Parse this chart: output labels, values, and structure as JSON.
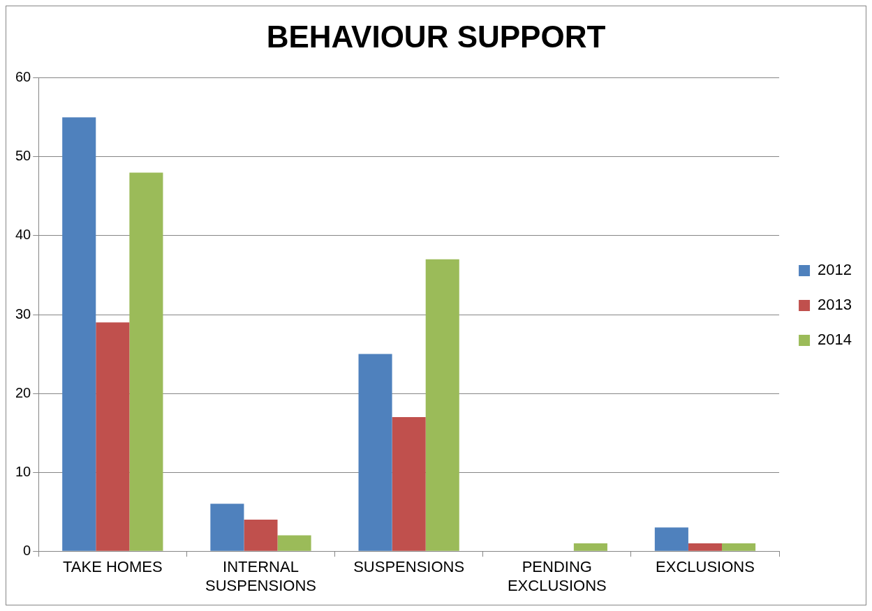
{
  "chart_data": {
    "type": "bar",
    "title": "BEHAVIOUR SUPPORT",
    "categories": [
      "TAKE HOMES",
      "INTERNAL SUSPENSIONS",
      "SUSPENSIONS",
      "PENDING EXCLUSIONS",
      "EXCLUSIONS"
    ],
    "series": [
      {
        "name": "2012",
        "color": "#4f81bd",
        "values": [
          55,
          6,
          25,
          0,
          3
        ]
      },
      {
        "name": "2013",
        "color": "#c0504d",
        "values": [
          29,
          4,
          17,
          0,
          1
        ]
      },
      {
        "name": "2014",
        "color": "#9bbb59",
        "values": [
          48,
          2,
          37,
          1,
          1
        ]
      }
    ],
    "ylim": [
      0,
      60
    ],
    "yticks": [
      0,
      10,
      20,
      30,
      40,
      50,
      60
    ],
    "grid": "y",
    "legend": "right"
  }
}
